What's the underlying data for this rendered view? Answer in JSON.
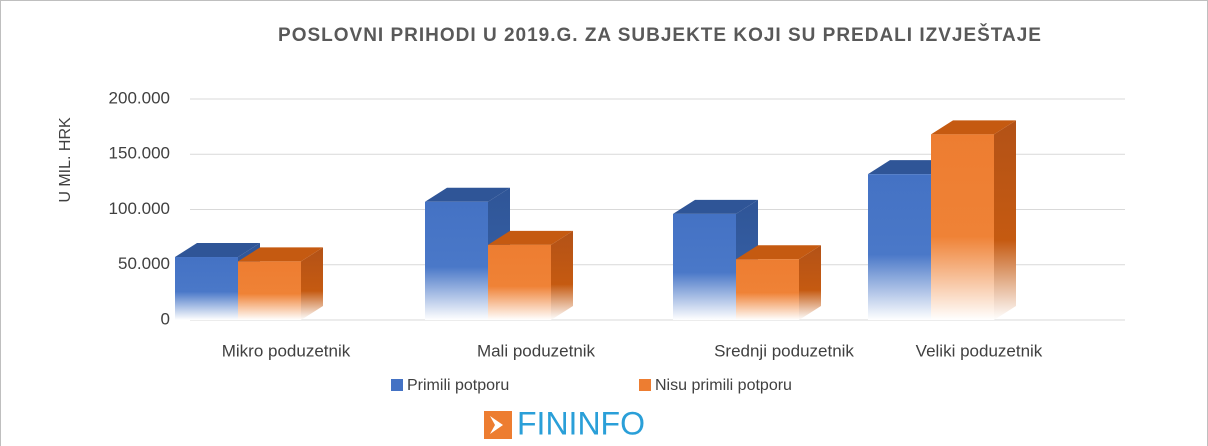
{
  "chart_data": {
    "type": "bar3d",
    "title": "POSLOVNI PRIHODI U 2019.G. ZA SUBJEKTE KOJI SU PREDALI IZVJEŠTAJE",
    "y_label": "U MIL. HRK",
    "categories": [
      "Mikro poduzetnik",
      "Mali poduzetnik",
      "Srednji poduzetnik",
      "Veliki poduzetnik"
    ],
    "series": [
      {
        "name": "Primili potporu",
        "color": "#4472c4",
        "values": [
          57000,
          107000,
          96000,
          132000
        ]
      },
      {
        "name": "Nisu primili potporu",
        "color": "#ed7d31",
        "values": [
          53000,
          68000,
          55000,
          168000
        ]
      }
    ],
    "ylim": [
      0,
      200000
    ],
    "yticks": [
      0,
      {
        "value": 50000,
        "label": "50.000"
      },
      {
        "value": 100000,
        "label": "100.000"
      },
      {
        "value": 150000,
        "label": "150.000"
      },
      {
        "value": 200000,
        "label": "200.000"
      }
    ],
    "grid": true,
    "legend": "bottom",
    "logo": "FININFO"
  }
}
